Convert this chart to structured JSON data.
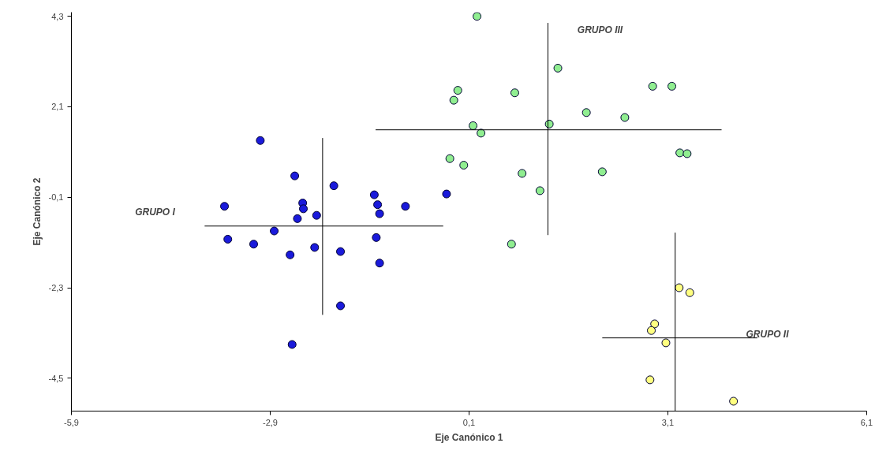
{
  "chart_data": {
    "type": "scatter",
    "xlabel": "Eje Canónico 1",
    "ylabel": "Eje Canónico 2",
    "xlim": [
      -5.9,
      6.1
    ],
    "ylim": [
      -5.3,
      4.4
    ],
    "xticks": [
      {
        "value": -5.9,
        "label": "-5,9"
      },
      {
        "value": -2.9,
        "label": "-2,9"
      },
      {
        "value": 0.1,
        "label": "0,1"
      },
      {
        "value": 3.1,
        "label": "3,1"
      },
      {
        "value": 6.1,
        "label": "6,1"
      }
    ],
    "yticks": [
      {
        "value": 4.3,
        "label": "4,3"
      },
      {
        "value": 2.1,
        "label": "2,1"
      },
      {
        "value": -0.1,
        "label": "-0,1"
      },
      {
        "value": -2.3,
        "label": "-2,3"
      },
      {
        "value": -4.5,
        "label": "-4,5"
      }
    ],
    "grid": false,
    "series": [
      {
        "color": "#1a1adb",
        "marker": "circle",
        "x": [
          -3.05,
          -2.53,
          -1.94,
          -3.59,
          -2.41,
          -2.4,
          -2.49,
          -2.2,
          -1.33,
          -1.28,
          -1.25,
          -0.86,
          -0.24,
          -2.84,
          -3.54,
          -3.15,
          -2.23,
          -2.6,
          -1.84,
          -1.3,
          -1.25,
          -1.84,
          -2.57
        ],
        "values": [
          1.28,
          0.42,
          0.18,
          -0.32,
          -0.24,
          -0.38,
          -0.62,
          -0.54,
          -0.04,
          -0.28,
          -0.5,
          -0.32,
          -0.02,
          -0.92,
          -1.12,
          -1.24,
          -1.32,
          -1.5,
          -1.42,
          -1.08,
          -1.7,
          -2.74,
          -3.68
        ]
      },
      {
        "color": "#90ee90",
        "marker": "circle",
        "x": [
          0.22,
          1.44,
          -0.07,
          -0.13,
          0.79,
          2.87,
          3.16,
          1.87,
          2.45,
          0.16,
          0.28,
          1.31,
          -0.19,
          0.02,
          0.9,
          2.11,
          1.17,
          3.28,
          3.39,
          0.74
        ],
        "values": [
          4.3,
          3.04,
          2.5,
          2.26,
          2.44,
          2.6,
          2.6,
          1.96,
          1.84,
          1.64,
          1.46,
          1.68,
          0.84,
          0.68,
          0.48,
          0.52,
          0.06,
          0.98,
          0.96,
          -1.24
        ]
      },
      {
        "color": "#ffff80",
        "marker": "circle",
        "x": [
          3.27,
          3.43,
          2.9,
          2.85,
          3.07,
          2.83,
          4.09
        ],
        "values": [
          -2.3,
          -2.42,
          -3.18,
          -3.34,
          -3.64,
          -4.54,
          -5.06
        ]
      },
      {
        "type": "line",
        "color": "#000000",
        "x": [
          -3.89,
          -0.29
        ],
        "values": [
          -0.8,
          -0.8
        ]
      },
      {
        "type": "line",
        "color": "#000000",
        "x": [
          -2.11,
          -2.11
        ],
        "values": [
          1.34,
          -2.96
        ]
      },
      {
        "type": "line",
        "color": "#000000",
        "x": [
          -1.31,
          3.91
        ],
        "values": [
          1.54,
          1.54
        ]
      },
      {
        "type": "line",
        "color": "#000000",
        "x": [
          1.29,
          1.29
        ],
        "values": [
          4.14,
          -1.02
        ]
      },
      {
        "type": "line",
        "color": "#000000",
        "x": [
          2.11,
          4.45
        ],
        "values": [
          -3.52,
          -3.52
        ]
      },
      {
        "type": "line",
        "color": "#000000",
        "x": [
          3.21,
          3.21
        ],
        "values": [
          -0.96,
          -5.3
        ]
      }
    ],
    "annotations": [
      "GRUPO I",
      "GRUPO III",
      "GRUPO II"
    ]
  }
}
